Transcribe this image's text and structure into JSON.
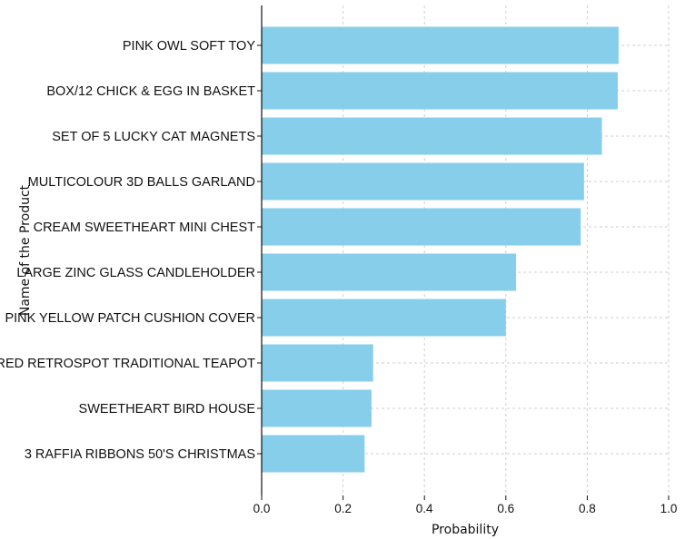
{
  "chart_data": {
    "type": "bar",
    "orientation": "horizontal",
    "title": "",
    "xlabel": "Probability",
    "ylabel": "Name of the Product",
    "xlim": [
      0,
      1.0
    ],
    "xticks": [
      "0.0",
      "0.2",
      "0.4",
      "0.6",
      "0.8",
      "1.0"
    ],
    "grid": true,
    "bar_color": "#87ceeb",
    "categories": [
      "PINK OWL SOFT TOY",
      "BOX/12 CHICK & EGG IN BASKET",
      "SET OF 5 LUCKY CAT MAGNETS",
      "MULTICOLOUR 3D BALLS GARLAND",
      "CREAM SWEETHEART MINI CHEST",
      "LARGE ZINC GLASS CANDLEHOLDER",
      "PINK YELLOW PATCH CUSHION COVER",
      "RED RETROSPOT TRADITIONAL TEAPOT",
      "SWEETHEART BIRD HOUSE",
      "3 RAFFIA RIBBONS 50'S CHRISTMAS"
    ],
    "values": [
      0.877,
      0.875,
      0.836,
      0.792,
      0.784,
      0.625,
      0.6,
      0.274,
      0.27,
      0.253
    ]
  }
}
